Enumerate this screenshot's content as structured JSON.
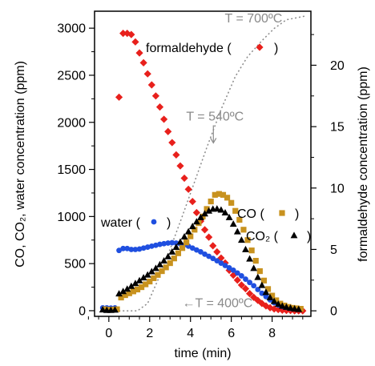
{
  "chart_data": {
    "type": "scatter",
    "xlabel": "time (min)",
    "ylabel_left": "CO, CO₂, water concentration (ppm)",
    "ylabel_right": "formaldehyde concentration (ppm)",
    "xlim": [
      -0.7,
      9.9
    ],
    "ylim_left": [
      -60,
      3180
    ],
    "ylim_right": [
      -0.45,
      24.4
    ],
    "x_ticks": [
      0,
      2,
      4,
      6,
      8
    ],
    "y_left_ticks": [
      0,
      500,
      1000,
      1500,
      2000,
      2500,
      3000
    ],
    "y_right_ticks": [
      0,
      5,
      10,
      15,
      20
    ],
    "grid": false,
    "colors": {
      "formaldehyde": "#e8201c",
      "water": "#1f4fe0",
      "co": "#c8921e",
      "co2": "#000000",
      "temperature": "#8a8a8a"
    },
    "annotations": [
      {
        "text": "T = 700ºC",
        "x": 8.5,
        "y_right": 23.5
      },
      {
        "text": "T = 540ºC",
        "x": 5.2,
        "y_right": 15.5,
        "arrow": "down"
      },
      {
        "text": "←T = 400ºC",
        "x": 3.6,
        "y_right": 0.3
      }
    ],
    "legend": [
      {
        "label": "formaldehyde (",
        "marker": "diamond",
        "close": ")",
        "series": "formaldehyde"
      },
      {
        "label": "CO (",
        "marker": "square",
        "close": ")",
        "series": "co"
      },
      {
        "label": "CO₂ (",
        "marker": "triangle",
        "close": ")",
        "series": "co2"
      },
      {
        "label": "water (",
        "marker": "circle",
        "close": ")",
        "series": "water"
      }
    ],
    "series": [
      {
        "name": "formaldehyde",
        "axis": "right",
        "marker": "diamond",
        "points": [
          [
            0.5,
            17.4
          ],
          [
            0.7,
            22.6
          ],
          [
            0.9,
            22.6
          ],
          [
            1.1,
            22.5
          ],
          [
            1.3,
            21.9
          ],
          [
            1.5,
            21.0
          ],
          [
            1.7,
            20.2
          ],
          [
            1.9,
            19.3
          ],
          [
            2.1,
            18.4
          ],
          [
            2.3,
            17.5
          ],
          [
            2.5,
            16.6
          ],
          [
            2.7,
            15.6
          ],
          [
            2.9,
            14.6
          ],
          [
            3.1,
            13.7
          ],
          [
            3.3,
            12.7
          ],
          [
            3.5,
            11.8
          ],
          [
            3.7,
            10.8
          ],
          [
            3.9,
            9.9
          ],
          [
            4.1,
            8.9
          ],
          [
            4.3,
            8.0
          ],
          [
            4.5,
            7.3
          ],
          [
            4.7,
            6.6
          ],
          [
            4.9,
            6.0
          ],
          [
            5.1,
            5.3
          ],
          [
            5.3,
            4.8
          ],
          [
            5.5,
            4.3
          ],
          [
            5.7,
            3.9
          ],
          [
            5.9,
            3.3
          ],
          [
            6.1,
            2.9
          ],
          [
            6.3,
            2.5
          ],
          [
            6.5,
            2.1
          ],
          [
            6.7,
            1.8
          ],
          [
            6.9,
            1.4
          ],
          [
            7.1,
            1.1
          ],
          [
            7.3,
            0.85
          ],
          [
            7.5,
            0.6
          ],
          [
            7.7,
            0.4
          ],
          [
            7.9,
            0.25
          ],
          [
            8.1,
            0.15
          ],
          [
            8.3,
            0.1
          ],
          [
            8.5,
            0.05
          ],
          [
            8.7,
            0.03
          ],
          [
            8.9,
            0.02
          ],
          [
            9.1,
            0.0
          ],
          [
            9.3,
            0.0
          ],
          [
            9.5,
            0.0
          ]
        ]
      },
      {
        "name": "water",
        "axis": "left",
        "marker": "circle",
        "points": [
          [
            -0.3,
            30
          ],
          [
            -0.1,
            30
          ],
          [
            0.1,
            28
          ],
          [
            0.3,
            30
          ],
          [
            0.5,
            640
          ],
          [
            0.7,
            660
          ],
          [
            0.9,
            660
          ],
          [
            1.1,
            650
          ],
          [
            1.3,
            650
          ],
          [
            1.5,
            655
          ],
          [
            1.7,
            665
          ],
          [
            1.9,
            675
          ],
          [
            2.1,
            685
          ],
          [
            2.3,
            695
          ],
          [
            2.5,
            705
          ],
          [
            2.7,
            712
          ],
          [
            2.9,
            718
          ],
          [
            3.1,
            722
          ],
          [
            3.3,
            718
          ],
          [
            3.5,
            710
          ],
          [
            3.7,
            700
          ],
          [
            3.9,
            685
          ],
          [
            4.1,
            665
          ],
          [
            4.3,
            645
          ],
          [
            4.5,
            625
          ],
          [
            4.7,
            600
          ],
          [
            4.9,
            578
          ],
          [
            5.1,
            555
          ],
          [
            5.3,
            530
          ],
          [
            5.5,
            505
          ],
          [
            5.7,
            480
          ],
          [
            5.9,
            455
          ],
          [
            6.1,
            430
          ],
          [
            6.3,
            400
          ],
          [
            6.5,
            370
          ],
          [
            6.7,
            335
          ],
          [
            6.9,
            300
          ],
          [
            7.1,
            265
          ],
          [
            7.3,
            225
          ],
          [
            7.5,
            185
          ],
          [
            7.7,
            150
          ],
          [
            7.9,
            115
          ],
          [
            8.1,
            85
          ],
          [
            8.3,
            60
          ],
          [
            8.5,
            45
          ],
          [
            8.7,
            35
          ],
          [
            8.9,
            25
          ],
          [
            9.1,
            20
          ],
          [
            9.3,
            15
          ]
        ]
      },
      {
        "name": "CO",
        "axis": "left",
        "marker": "square",
        "points": [
          [
            -0.2,
            15
          ],
          [
            0.0,
            10
          ],
          [
            0.2,
            12
          ],
          [
            0.4,
            15
          ],
          [
            0.6,
            140
          ],
          [
            0.8,
            165
          ],
          [
            1.0,
            185
          ],
          [
            1.2,
            205
          ],
          [
            1.4,
            225
          ],
          [
            1.6,
            250
          ],
          [
            1.8,
            280
          ],
          [
            2.0,
            310
          ],
          [
            2.2,
            345
          ],
          [
            2.4,
            380
          ],
          [
            2.6,
            420
          ],
          [
            2.8,
            460
          ],
          [
            3.0,
            505
          ],
          [
            3.2,
            555
          ],
          [
            3.4,
            610
          ],
          [
            3.6,
            665
          ],
          [
            3.8,
            725
          ],
          [
            4.0,
            790
          ],
          [
            4.2,
            860
          ],
          [
            4.4,
            930
          ],
          [
            4.6,
            1000
          ],
          [
            4.8,
            1080
          ],
          [
            5.0,
            1160
          ],
          [
            5.2,
            1230
          ],
          [
            5.4,
            1240
          ],
          [
            5.6,
            1230
          ],
          [
            5.8,
            1200
          ],
          [
            6.0,
            1145
          ],
          [
            6.2,
            1060
          ],
          [
            6.4,
            965
          ],
          [
            6.6,
            860
          ],
          [
            6.8,
            750
          ],
          [
            7.0,
            640
          ],
          [
            7.2,
            530
          ],
          [
            7.4,
            420
          ],
          [
            7.6,
            320
          ],
          [
            7.8,
            230
          ],
          [
            8.0,
            160
          ],
          [
            8.2,
            110
          ],
          [
            8.4,
            75
          ],
          [
            8.6,
            55
          ],
          [
            8.8,
            40
          ],
          [
            9.0,
            30
          ],
          [
            9.2,
            25
          ],
          [
            9.4,
            20
          ]
        ]
      },
      {
        "name": "CO2",
        "axis": "left",
        "marker": "triangle",
        "points": [
          [
            -0.3,
            10
          ],
          [
            -0.1,
            5
          ],
          [
            0.1,
            5
          ],
          [
            0.3,
            8
          ],
          [
            0.5,
            180
          ],
          [
            0.7,
            205
          ],
          [
            0.9,
            230
          ],
          [
            1.1,
            260
          ],
          [
            1.3,
            290
          ],
          [
            1.5,
            320
          ],
          [
            1.7,
            350
          ],
          [
            1.9,
            380
          ],
          [
            2.1,
            415
          ],
          [
            2.3,
            450
          ],
          [
            2.5,
            490
          ],
          [
            2.7,
            530
          ],
          [
            2.9,
            575
          ],
          [
            3.1,
            625
          ],
          [
            3.3,
            675
          ],
          [
            3.5,
            730
          ],
          [
            3.7,
            785
          ],
          [
            3.9,
            840
          ],
          [
            4.1,
            895
          ],
          [
            4.3,
            945
          ],
          [
            4.5,
            990
          ],
          [
            4.7,
            1030
          ],
          [
            4.9,
            1060
          ],
          [
            5.1,
            1080
          ],
          [
            5.3,
            1082
          ],
          [
            5.5,
            1070
          ],
          [
            5.7,
            1040
          ],
          [
            5.9,
            990
          ],
          [
            6.1,
            920
          ],
          [
            6.3,
            840
          ],
          [
            6.5,
            750
          ],
          [
            6.7,
            650
          ],
          [
            6.9,
            550
          ],
          [
            7.1,
            450
          ],
          [
            7.3,
            355
          ],
          [
            7.5,
            270
          ],
          [
            7.7,
            195
          ],
          [
            7.9,
            140
          ],
          [
            8.1,
            100
          ],
          [
            8.3,
            70
          ],
          [
            8.5,
            50
          ],
          [
            8.7,
            38
          ],
          [
            8.9,
            28
          ],
          [
            9.1,
            20
          ],
          [
            9.3,
            15
          ]
        ]
      },
      {
        "name": "temperature",
        "axis": "right",
        "style": "dotted-line",
        "points": [
          [
            -0.3,
            0.0
          ],
          [
            1.4,
            0.0
          ],
          [
            1.9,
            0.6
          ],
          [
            2.4,
            2.5
          ],
          [
            3.0,
            5.0
          ],
          [
            3.6,
            7.7
          ],
          [
            4.2,
            10.5
          ],
          [
            4.8,
            13.3
          ],
          [
            5.5,
            16.4
          ],
          [
            6.2,
            19.1
          ],
          [
            6.8,
            20.7
          ],
          [
            7.5,
            22.0
          ],
          [
            8.1,
            23.0
          ],
          [
            8.7,
            23.7
          ],
          [
            9.3,
            23.9
          ],
          [
            9.6,
            24.0
          ]
        ]
      }
    ]
  }
}
